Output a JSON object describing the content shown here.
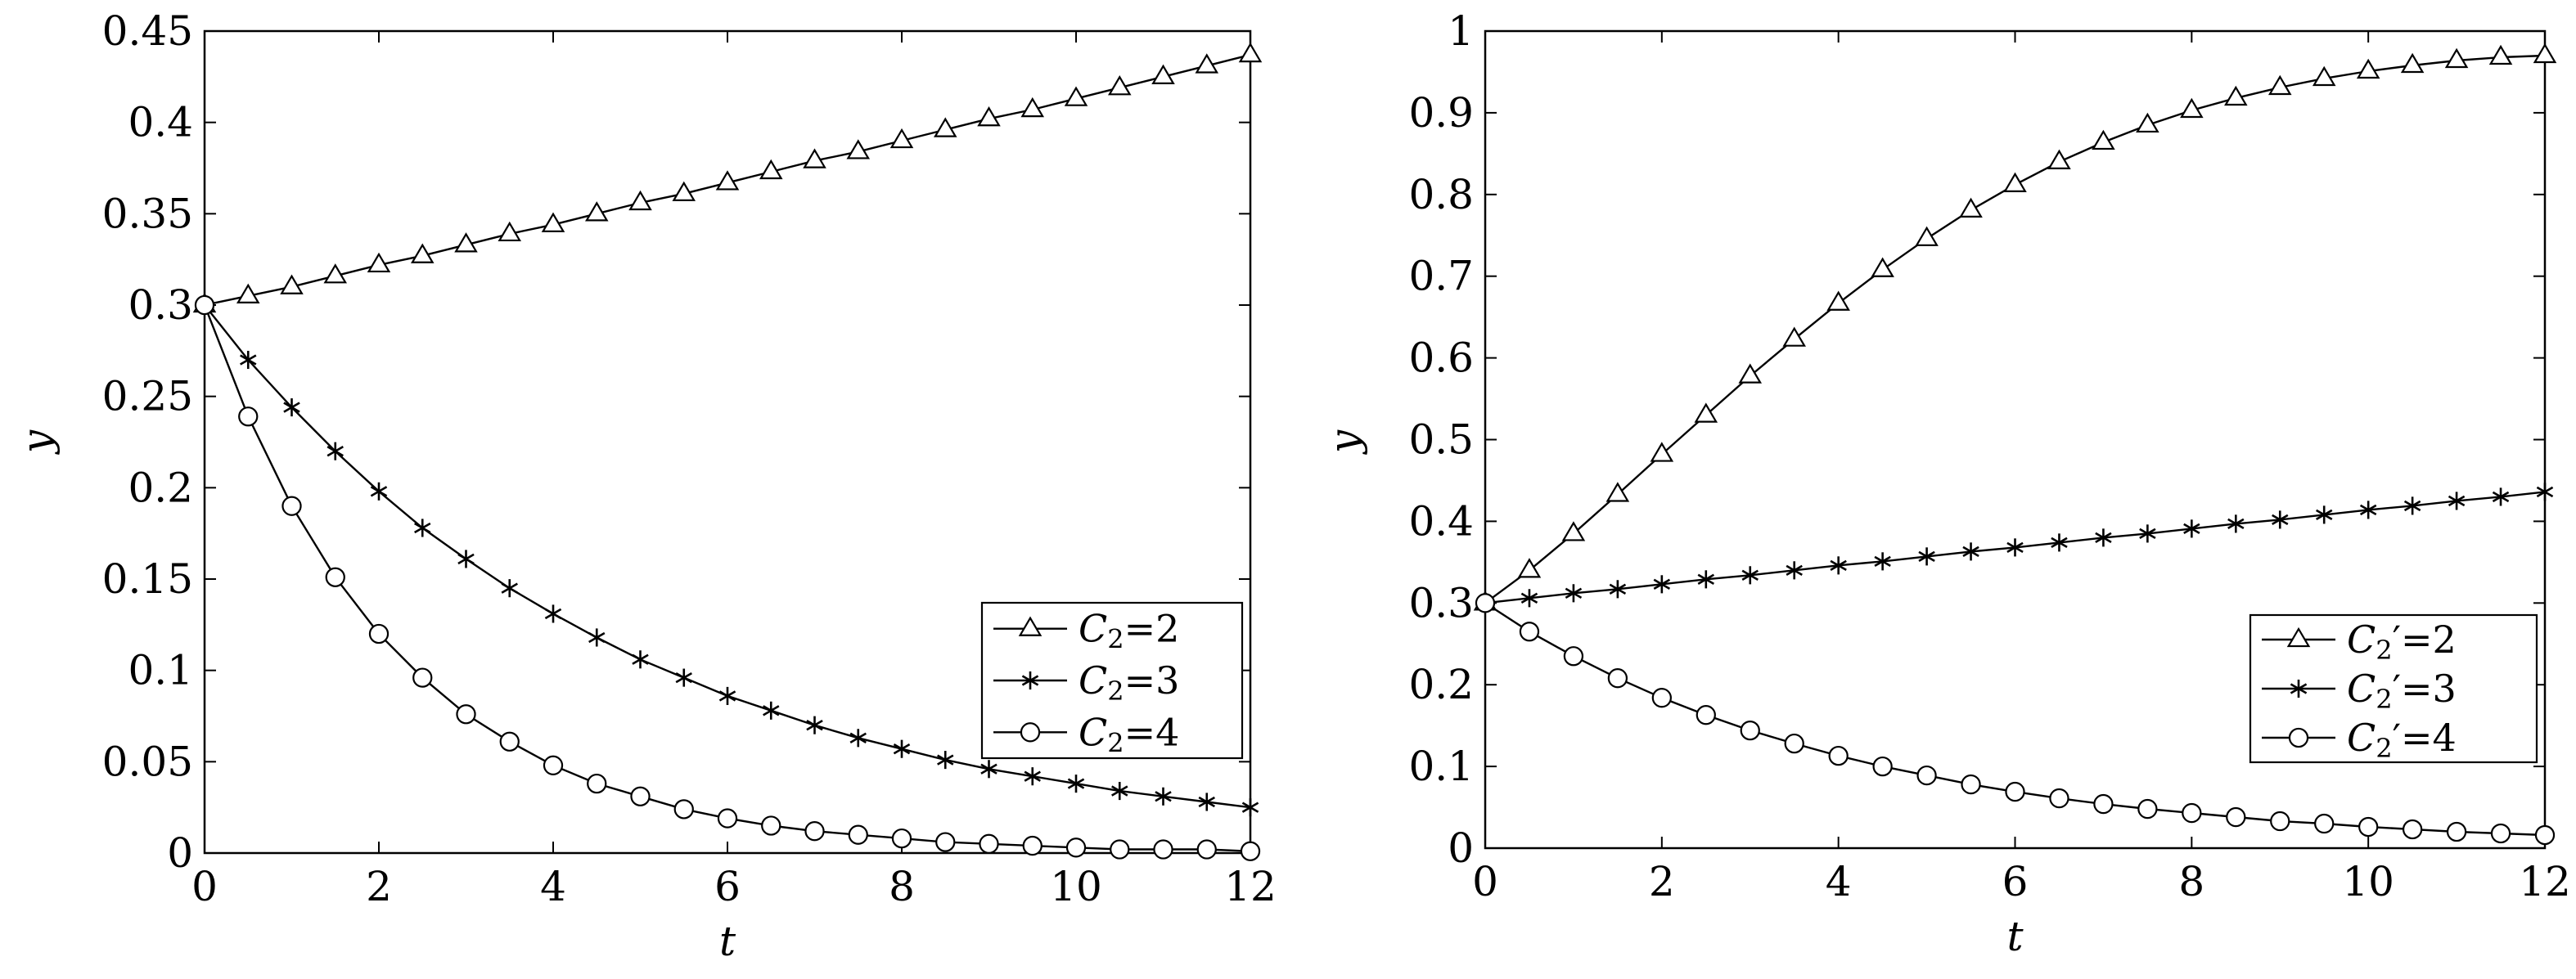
{
  "charts": [
    {
      "type": "line",
      "title": "",
      "xlabel": "t",
      "ylabel": "y",
      "xlim": [
        0,
        12
      ],
      "ylim": [
        0,
        0.45
      ],
      "xticks": [
        0,
        2,
        4,
        6,
        8,
        10,
        12
      ],
      "xtick_labels": [
        "0",
        "2",
        "4",
        "6",
        "8",
        "10",
        "12"
      ],
      "yticks": [
        0,
        0.05,
        0.1,
        0.15,
        0.2,
        0.25,
        0.3,
        0.35,
        0.4,
        0.45
      ],
      "ytick_labels": [
        "0",
        "0.05",
        "0.1",
        "0.15",
        "0.2",
        "0.25",
        "0.3",
        "0.35",
        "0.4",
        "0.45"
      ],
      "grid": false,
      "legend_position": "center-right",
      "series": [
        {
          "name": "C2=2",
          "label_symbol": "C",
          "label_sub": "2",
          "label_suffix": "=2",
          "marker": "triangle",
          "x": [
            0,
            0.5,
            1,
            1.5,
            2,
            2.5,
            3,
            3.5,
            4,
            4.5,
            5,
            5.5,
            6,
            6.5,
            7,
            7.5,
            8,
            8.5,
            9,
            9.5,
            10,
            10.5,
            11,
            11.5,
            12
          ],
          "y": [
            0.3,
            0.305,
            0.31,
            0.316,
            0.322,
            0.327,
            0.333,
            0.339,
            0.344,
            0.35,
            0.356,
            0.361,
            0.367,
            0.373,
            0.379,
            0.384,
            0.39,
            0.396,
            0.402,
            0.407,
            0.413,
            0.419,
            0.425,
            0.431,
            0.437
          ]
        },
        {
          "name": "C2=3",
          "label_symbol": "C",
          "label_sub": "2",
          "label_suffix": "=3",
          "marker": "star",
          "x": [
            0,
            0.5,
            1,
            1.5,
            2,
            2.5,
            3,
            3.5,
            4,
            4.5,
            5,
            5.5,
            6,
            6.5,
            7,
            7.5,
            8,
            8.5,
            9,
            9.5,
            10,
            10.5,
            11,
            11.5,
            12
          ],
          "y": [
            0.3,
            0.27,
            0.244,
            0.22,
            0.198,
            0.178,
            0.161,
            0.145,
            0.131,
            0.118,
            0.106,
            0.096,
            0.086,
            0.078,
            0.07,
            0.063,
            0.057,
            0.051,
            0.046,
            0.042,
            0.038,
            0.034,
            0.031,
            0.028,
            0.025
          ]
        },
        {
          "name": "C2=4",
          "label_symbol": "C",
          "label_sub": "2",
          "label_suffix": "=4",
          "marker": "circle",
          "x": [
            0,
            0.5,
            1,
            1.5,
            2,
            2.5,
            3,
            3.5,
            4,
            4.5,
            5,
            5.5,
            6,
            6.5,
            7,
            7.5,
            8,
            8.5,
            9,
            9.5,
            10,
            10.5,
            11,
            11.5,
            12
          ],
          "y": [
            0.3,
            0.239,
            0.19,
            0.151,
            0.12,
            0.096,
            0.076,
            0.061,
            0.048,
            0.038,
            0.031,
            0.024,
            0.019,
            0.015,
            0.012,
            0.01,
            0.008,
            0.006,
            0.005,
            0.004,
            0.003,
            0.002,
            0.002,
            0.002,
            0.001
          ]
        }
      ]
    },
    {
      "type": "line",
      "title": "",
      "xlabel": "t",
      "ylabel": "y",
      "xlim": [
        0,
        12
      ],
      "ylim": [
        0,
        1
      ],
      "xticks": [
        0,
        2,
        4,
        6,
        8,
        10,
        12
      ],
      "xtick_labels": [
        "0",
        "2",
        "4",
        "6",
        "8",
        "10",
        "12"
      ],
      "yticks": [
        0,
        0.1,
        0.2,
        0.3,
        0.4,
        0.5,
        0.6,
        0.7,
        0.8,
        0.9,
        1
      ],
      "ytick_labels": [
        "0",
        "0.1",
        "0.2",
        "0.3",
        "0.4",
        "0.5",
        "0.6",
        "0.7",
        "0.8",
        "0.9",
        "1"
      ],
      "grid": false,
      "legend_position": "bottom-right",
      "series": [
        {
          "name": "C2'=2",
          "label_symbol": "C",
          "label_sub": "2",
          "label_suffix": "′=2",
          "marker": "triangle",
          "x": [
            0,
            0.5,
            1,
            1.5,
            2,
            2.5,
            3,
            3.5,
            4,
            4.5,
            5,
            5.5,
            6,
            6.5,
            7,
            7.5,
            8,
            8.5,
            9,
            9.5,
            10,
            10.5,
            11,
            11.5,
            12
          ],
          "y": [
            0.3,
            0.34,
            0.385,
            0.433,
            0.482,
            0.53,
            0.578,
            0.623,
            0.667,
            0.708,
            0.746,
            0.781,
            0.812,
            0.84,
            0.864,
            0.885,
            0.903,
            0.918,
            0.931,
            0.942,
            0.951,
            0.958,
            0.964,
            0.968,
            0.97
          ]
        },
        {
          "name": "C2'=3",
          "label_symbol": "C",
          "label_sub": "2",
          "label_suffix": "′=3",
          "marker": "star",
          "x": [
            0,
            0.5,
            1,
            1.5,
            2,
            2.5,
            3,
            3.5,
            4,
            4.5,
            5,
            5.5,
            6,
            6.5,
            7,
            7.5,
            8,
            8.5,
            9,
            9.5,
            10,
            10.5,
            11,
            11.5,
            12
          ],
          "y": [
            0.3,
            0.306,
            0.312,
            0.317,
            0.323,
            0.329,
            0.334,
            0.34,
            0.346,
            0.351,
            0.357,
            0.363,
            0.368,
            0.374,
            0.38,
            0.385,
            0.391,
            0.397,
            0.402,
            0.408,
            0.414,
            0.419,
            0.425,
            0.43,
            0.436
          ]
        },
        {
          "name": "C2'=4",
          "label_symbol": "C",
          "label_sub": "2",
          "label_suffix": "′=4",
          "marker": "circle",
          "x": [
            0,
            0.5,
            1,
            1.5,
            2,
            2.5,
            3,
            3.5,
            4,
            4.5,
            5,
            5.5,
            6,
            6.5,
            7,
            7.5,
            8,
            8.5,
            9,
            9.5,
            10,
            10.5,
            11,
            11.5,
            12
          ],
          "y": [
            0.3,
            0.265,
            0.235,
            0.208,
            0.184,
            0.163,
            0.144,
            0.128,
            0.113,
            0.1,
            0.089,
            0.078,
            0.069,
            0.061,
            0.054,
            0.048,
            0.043,
            0.038,
            0.033,
            0.03,
            0.026,
            0.023,
            0.02,
            0.018,
            0.016
          ]
        }
      ]
    }
  ]
}
